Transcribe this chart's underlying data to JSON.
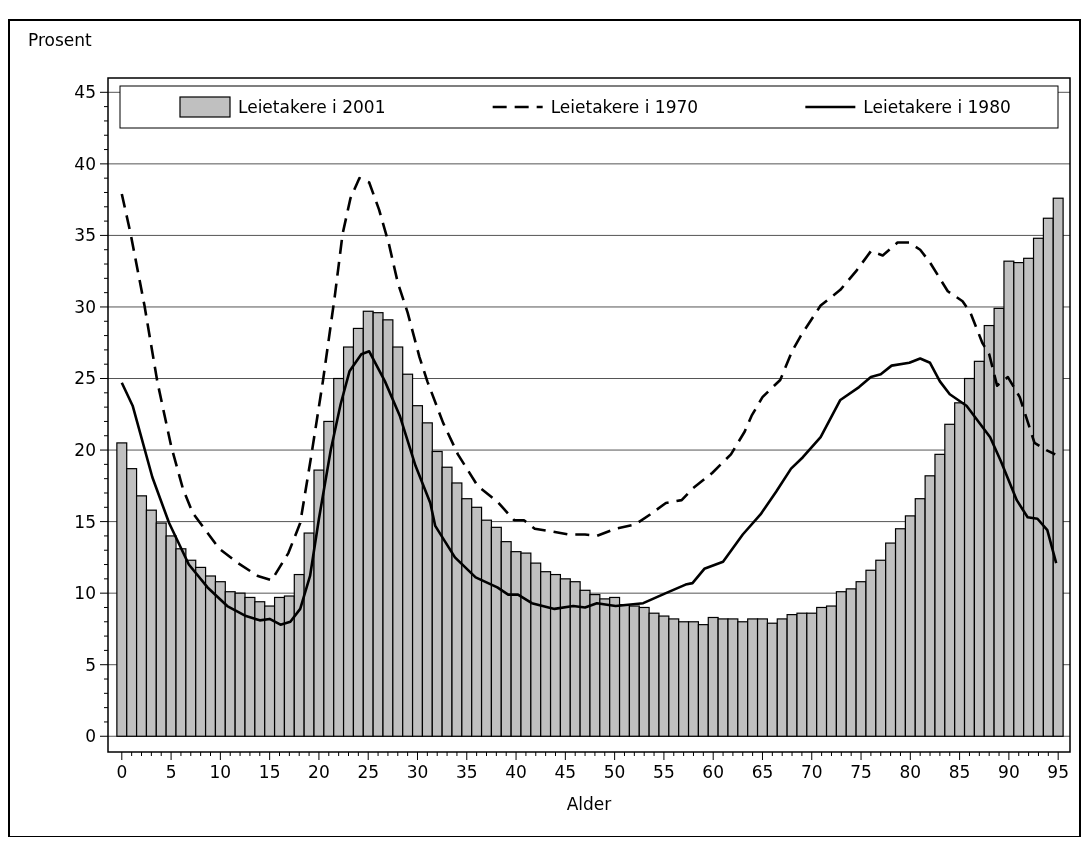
{
  "chart_data": {
    "type": "bar",
    "xlabel": "Alder",
    "ylabel": "Prosent",
    "x": [
      0,
      1,
      2,
      3,
      4,
      5,
      6,
      7,
      8,
      9,
      10,
      11,
      12,
      13,
      14,
      15,
      16,
      17,
      18,
      19,
      20,
      21,
      22,
      23,
      24,
      25,
      26,
      27,
      28,
      29,
      30,
      31,
      32,
      33,
      34,
      35,
      36,
      37,
      38,
      39,
      40,
      41,
      42,
      43,
      44,
      45,
      46,
      47,
      48,
      49,
      50,
      51,
      52,
      53,
      54,
      55,
      56,
      57,
      58,
      59,
      60,
      61,
      62,
      63,
      64,
      65,
      66,
      67,
      68,
      69,
      70,
      71,
      72,
      73,
      74,
      75,
      76,
      77,
      78,
      79,
      80,
      81,
      82,
      83,
      84,
      85,
      86,
      87,
      88,
      89,
      90,
      91,
      92,
      93,
      94,
      95
    ],
    "series": [
      {
        "name": "Leietakere i 2001",
        "color": "#c0c0c0",
        "values": [
          20.5,
          18.7,
          16.8,
          15.8,
          14.9,
          14.0,
          13.1,
          12.3,
          11.8,
          11.2,
          10.8,
          10.1,
          10.0,
          9.7,
          9.4,
          9.1,
          9.7,
          9.8,
          11.3,
          14.2,
          18.6,
          22.0,
          25.0,
          27.2,
          28.5,
          29.7,
          29.6,
          29.1,
          27.2,
          25.3,
          23.1,
          21.9,
          19.9,
          18.8,
          17.7,
          16.6,
          16.0,
          15.1,
          14.6,
          13.6,
          12.9,
          12.8,
          12.1,
          11.5,
          11.3,
          11.0,
          10.8,
          10.2,
          9.9,
          9.6,
          9.7,
          9.2,
          9.1,
          9.0,
          8.6,
          8.4,
          8.2,
          8.0,
          8.0,
          7.8,
          8.3,
          8.2,
          8.2,
          8.0,
          8.2,
          8.2,
          7.9,
          8.2,
          8.5,
          8.6,
          8.6,
          9.0,
          9.1,
          10.1,
          10.3,
          10.8,
          11.6,
          12.3,
          13.5,
          14.5,
          15.4,
          16.6,
          18.2,
          19.7,
          21.8,
          23.3,
          25.0,
          26.2,
          28.7,
          29.9,
          33.2,
          33.1,
          33.4,
          34.8,
          36.2,
          37.6
        ]
      },
      {
        "name": "Leietakere i 1970",
        "type": "line",
        "line_style": "dashed",
        "color": "#000000",
        "x": [
          0,
          0.9,
          2.3,
          3.6,
          5.0,
          6.2,
          7.2,
          9.9,
          11.8,
          13.8,
          15.2,
          16.9,
          18.1,
          19.2,
          20.4,
          21.6,
          22.4,
          23.2,
          24.1,
          25.1,
          26.1,
          27.1,
          28.0,
          29.0,
          30.2,
          31.0,
          32.6,
          34.1,
          36.1,
          38.1,
          39.8,
          40.8,
          41.9,
          43.7,
          45.3,
          47.0,
          48.2,
          50.1,
          52.1,
          53.6,
          55.2,
          56.8,
          57.9,
          59.9,
          61.8,
          63.2,
          63.9,
          65.0,
          66.8,
          68.0,
          68.9,
          70.9,
          72.9,
          74.5,
          76.0,
          77.2,
          78.7,
          79.9,
          81.0,
          82.0,
          83.8,
          85.3,
          86.1,
          87.3,
          88.0,
          88.8,
          89.9,
          91.1,
          92.6,
          93.8,
          94.7
        ],
        "values": [
          37.9,
          35.1,
          30.1,
          24.8,
          20.3,
          17.3,
          15.6,
          13.1,
          12.1,
          11.2,
          10.9,
          12.8,
          14.9,
          19.5,
          24.8,
          30.7,
          35.1,
          37.6,
          39.0,
          38.7,
          36.8,
          34.4,
          31.7,
          29.6,
          26.5,
          24.8,
          21.9,
          19.7,
          17.5,
          16.4,
          15.1,
          15.1,
          14.5,
          14.3,
          14.1,
          14.1,
          14.0,
          14.5,
          14.8,
          15.5,
          16.3,
          16.5,
          17.3,
          18.4,
          19.7,
          21.3,
          22.4,
          23.7,
          24.9,
          26.9,
          28.0,
          30.1,
          31.2,
          32.5,
          33.9,
          33.6,
          34.5,
          34.5,
          34.0,
          33.1,
          31.1,
          30.4,
          29.6,
          27.5,
          26.7,
          24.5,
          25.1,
          23.7,
          20.5,
          20.0,
          19.7
        ]
      },
      {
        "name": "Leietakere i 1980",
        "type": "line",
        "line_style": "solid",
        "color": "#000000",
        "x": [
          0,
          1.1,
          3.1,
          4.8,
          6.8,
          8.7,
          10.7,
          12.6,
          14.0,
          15.0,
          16.1,
          17.1,
          18.1,
          19.1,
          20.0,
          21.2,
          22.2,
          23.1,
          24.3,
          25.1,
          26.7,
          28.2,
          29.8,
          31.3,
          31.8,
          33.8,
          35.9,
          38.1,
          39.2,
          40.2,
          41.6,
          43.9,
          45.8,
          47.0,
          48.2,
          50.1,
          52.9,
          55.2,
          57.2,
          57.9,
          59.1,
          61.0,
          63.0,
          64.8,
          66.4,
          67.9,
          69.1,
          70.9,
          72.9,
          74.8,
          76.0,
          77.0,
          78.1,
          79.9,
          81.0,
          82.0,
          83.0,
          84.0,
          85.7,
          88.1,
          89.2,
          90.8,
          91.9,
          92.9,
          93.9,
          94.8
        ],
        "values": [
          24.7,
          23.1,
          18.1,
          14.9,
          12.0,
          10.4,
          9.1,
          8.4,
          8.1,
          8.2,
          7.8,
          8.0,
          8.9,
          11.2,
          15.2,
          20.0,
          23.2,
          25.5,
          26.7,
          26.9,
          24.8,
          22.4,
          18.9,
          16.3,
          14.7,
          12.5,
          11.1,
          10.4,
          9.9,
          9.9,
          9.3,
          8.9,
          9.1,
          9.0,
          9.3,
          9.1,
          9.3,
          10.0,
          10.6,
          10.7,
          11.7,
          12.2,
          14.1,
          15.5,
          17.1,
          18.7,
          19.5,
          20.9,
          23.5,
          24.4,
          25.1,
          25.3,
          25.9,
          26.1,
          26.4,
          26.1,
          24.8,
          23.9,
          23.1,
          20.9,
          19.2,
          16.5,
          15.3,
          15.2,
          14.4,
          12.1
        ]
      }
    ],
    "xlim": [
      -1.4,
      96.2
    ],
    "xticks": [
      0,
      {
        "value": 1,
        "label": null
      },
      {
        "value": 2,
        "label": null
      },
      {
        "value": 3,
        "label": null
      },
      {
        "value": 4,
        "label": null
      },
      5,
      {
        "value": 6,
        "label": null
      },
      {
        "value": 7,
        "label": null
      },
      {
        "value": 8,
        "label": null
      },
      {
        "value": 9,
        "label": null
      },
      10,
      {
        "value": 11,
        "label": null
      },
      {
        "value": 12,
        "label": null
      },
      {
        "value": 13,
        "label": null
      },
      {
        "value": 14,
        "label": null
      },
      15,
      {
        "value": 16,
        "label": null
      },
      {
        "value": 17,
        "label": null
      },
      {
        "value": 18,
        "label": null
      },
      {
        "value": 19,
        "label": null
      },
      20,
      {
        "value": 21,
        "label": null
      },
      {
        "value": 22,
        "label": null
      },
      {
        "value": 23,
        "label": null
      },
      {
        "value": 24,
        "label": null
      },
      25,
      {
        "value": 26,
        "label": null
      },
      {
        "value": 27,
        "label": null
      },
      {
        "value": 28,
        "label": null
      },
      {
        "value": 29,
        "label": null
      },
      30,
      {
        "value": 31,
        "label": null
      },
      {
        "value": 32,
        "label": null
      },
      {
        "value": 33,
        "label": null
      },
      {
        "value": 34,
        "label": null
      },
      35,
      {
        "value": 36,
        "label": null
      },
      {
        "value": 37,
        "label": null
      },
      {
        "value": 38,
        "label": null
      },
      {
        "value": 39,
        "label": null
      },
      40,
      {
        "value": 41,
        "label": null
      },
      {
        "value": 42,
        "label": null
      },
      {
        "value": 43,
        "label": null
      },
      {
        "value": 44,
        "label": null
      },
      45,
      {
        "value": 46,
        "label": null
      },
      {
        "value": 47,
        "label": null
      },
      {
        "value": 48,
        "label": null
      },
      {
        "value": 49,
        "label": null
      },
      50,
      {
        "value": 51,
        "label": null
      },
      {
        "value": 52,
        "label": null
      },
      {
        "value": 53,
        "label": null
      },
      {
        "value": 54,
        "label": null
      },
      55,
      {
        "value": 56,
        "label": null
      },
      {
        "value": 57,
        "label": null
      },
      {
        "value": 58,
        "label": null
      },
      {
        "value": 59,
        "label": null
      },
      60,
      {
        "value": 61,
        "label": null
      },
      {
        "value": 62,
        "label": null
      },
      {
        "value": 63,
        "label": null
      },
      {
        "value": 64,
        "label": null
      },
      65,
      {
        "value": 66,
        "label": null
      },
      {
        "value": 67,
        "label": null
      },
      {
        "value": 68,
        "label": null
      },
      {
        "value": 69,
        "label": null
      },
      70,
      {
        "value": 71,
        "label": null
      },
      {
        "value": 72,
        "label": null
      },
      {
        "value": 73,
        "label": null
      },
      {
        "value": 74,
        "label": null
      },
      75,
      {
        "value": 76,
        "label": null
      },
      {
        "value": 77,
        "label": null
      },
      {
        "value": 78,
        "label": null
      },
      {
        "value": 79,
        "label": null
      },
      80,
      {
        "value": 81,
        "label": null
      },
      {
        "value": 82,
        "label": null
      },
      {
        "value": 83,
        "label": null
      },
      {
        "value": 84,
        "label": null
      },
      85,
      {
        "value": 86,
        "label": null
      },
      {
        "value": 87,
        "label": null
      },
      {
        "value": 88,
        "label": null
      },
      {
        "value": 89,
        "label": null
      },
      90,
      {
        "value": 91,
        "label": null
      },
      {
        "value": 92,
        "label": null
      },
      {
        "value": 93,
        "label": null
      },
      {
        "value": 94,
        "label": null
      },
      95
    ],
    "ylim": [
      -1.1,
      46
    ],
    "yticks": [
      0,
      {
        "value": 1,
        "label": null
      },
      {
        "value": 2,
        "label": null
      },
      {
        "value": 3,
        "label": null
      },
      {
        "value": 4,
        "label": null
      },
      5,
      {
        "value": 6,
        "label": null
      },
      {
        "value": 7,
        "label": null
      },
      {
        "value": 8,
        "label": null
      },
      {
        "value": 9,
        "label": null
      },
      10,
      {
        "value": 11,
        "label": null
      },
      {
        "value": 12,
        "label": null
      },
      {
        "value": 13,
        "label": null
      },
      {
        "value": 14,
        "label": null
      },
      15,
      {
        "value": 16,
        "label": null
      },
      {
        "value": 17,
        "label": null
      },
      {
        "value": 18,
        "label": null
      },
      {
        "value": 19,
        "label": null
      },
      20,
      {
        "value": 21,
        "label": null
      },
      {
        "value": 22,
        "label": null
      },
      {
        "value": 23,
        "label": null
      },
      {
        "value": 24,
        "label": null
      },
      25,
      {
        "value": 26,
        "label": null
      },
      {
        "value": 27,
        "label": null
      },
      {
        "value": 28,
        "label": null
      },
      {
        "value": 29,
        "label": null
      },
      30,
      {
        "value": 31,
        "label": null
      },
      {
        "value": 32,
        "label": null
      },
      {
        "value": 33,
        "label": null
      },
      {
        "value": 34,
        "label": null
      },
      35,
      {
        "value": 36,
        "label": null
      },
      {
        "value": 37,
        "label": null
      },
      {
        "value": 38,
        "label": null
      },
      {
        "value": 39,
        "label": null
      },
      40,
      {
        "value": 41,
        "label": null
      },
      {
        "value": 42,
        "label": null
      },
      {
        "value": 43,
        "label": null
      },
      {
        "value": 44,
        "label": null
      },
      45
    ],
    "grid": "y",
    "legend": "top",
    "marker": "none"
  }
}
